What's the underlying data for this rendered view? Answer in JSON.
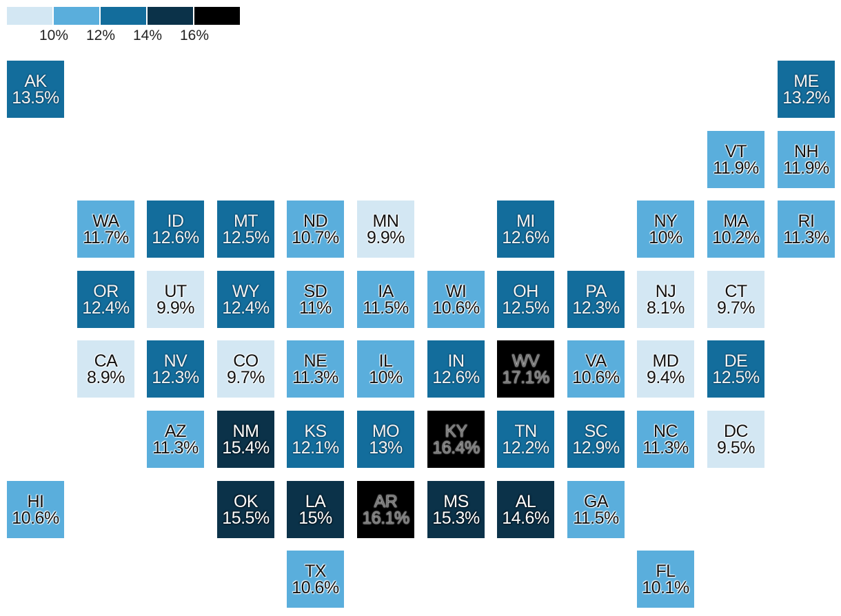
{
  "legend": {
    "colors": [
      "#d3e7f3",
      "#5aaedc",
      "#136d9c",
      "#0b3249",
      "#000000"
    ],
    "ticks": [
      "10%",
      "12%",
      "14%",
      "16%"
    ]
  },
  "states": [
    {
      "abbr": "AK",
      "value": "13.5%",
      "color": "#136d9c",
      "col": 0,
      "row": 0
    },
    {
      "abbr": "ME",
      "value": "13.2%",
      "color": "#136d9c",
      "col": 11,
      "row": 0
    },
    {
      "abbr": "VT",
      "value": "11.9%",
      "color": "#5aaedc",
      "col": 10,
      "row": 1
    },
    {
      "abbr": "NH",
      "value": "11.9%",
      "color": "#5aaedc",
      "col": 11,
      "row": 1
    },
    {
      "abbr": "WA",
      "value": "11.7%",
      "color": "#5aaedc",
      "col": 1,
      "row": 2
    },
    {
      "abbr": "ID",
      "value": "12.6%",
      "color": "#136d9c",
      "col": 2,
      "row": 2
    },
    {
      "abbr": "MT",
      "value": "12.5%",
      "color": "#136d9c",
      "col": 3,
      "row": 2
    },
    {
      "abbr": "ND",
      "value": "10.7%",
      "color": "#5aaedc",
      "col": 4,
      "row": 2
    },
    {
      "abbr": "MN",
      "value": "9.9%",
      "color": "#d3e7f3",
      "col": 5,
      "row": 2
    },
    {
      "abbr": "MI",
      "value": "12.6%",
      "color": "#136d9c",
      "col": 7,
      "row": 2
    },
    {
      "abbr": "NY",
      "value": "10%",
      "color": "#5aaedc",
      "col": 9,
      "row": 2
    },
    {
      "abbr": "MA",
      "value": "10.2%",
      "color": "#5aaedc",
      "col": 10,
      "row": 2
    },
    {
      "abbr": "RI",
      "value": "11.3%",
      "color": "#5aaedc",
      "col": 11,
      "row": 2
    },
    {
      "abbr": "OR",
      "value": "12.4%",
      "color": "#136d9c",
      "col": 1,
      "row": 3
    },
    {
      "abbr": "UT",
      "value": "9.9%",
      "color": "#d3e7f3",
      "col": 2,
      "row": 3
    },
    {
      "abbr": "WY",
      "value": "12.4%",
      "color": "#136d9c",
      "col": 3,
      "row": 3
    },
    {
      "abbr": "SD",
      "value": "11%",
      "color": "#5aaedc",
      "col": 4,
      "row": 3
    },
    {
      "abbr": "IA",
      "value": "11.5%",
      "color": "#5aaedc",
      "col": 5,
      "row": 3
    },
    {
      "abbr": "WI",
      "value": "10.6%",
      "color": "#5aaedc",
      "col": 6,
      "row": 3
    },
    {
      "abbr": "OH",
      "value": "12.5%",
      "color": "#136d9c",
      "col": 7,
      "row": 3
    },
    {
      "abbr": "PA",
      "value": "12.3%",
      "color": "#136d9c",
      "col": 8,
      "row": 3
    },
    {
      "abbr": "NJ",
      "value": "8.1%",
      "color": "#d3e7f3",
      "col": 9,
      "row": 3
    },
    {
      "abbr": "CT",
      "value": "9.7%",
      "color": "#d3e7f3",
      "col": 10,
      "row": 3
    },
    {
      "abbr": "CA",
      "value": "8.9%",
      "color": "#d3e7f3",
      "col": 1,
      "row": 4
    },
    {
      "abbr": "NV",
      "value": "12.3%",
      "color": "#136d9c",
      "col": 2,
      "row": 4
    },
    {
      "abbr": "CO",
      "value": "9.7%",
      "color": "#d3e7f3",
      "col": 3,
      "row": 4
    },
    {
      "abbr": "NE",
      "value": "11.3%",
      "color": "#5aaedc",
      "col": 4,
      "row": 4
    },
    {
      "abbr": "IL",
      "value": "10%",
      "color": "#5aaedc",
      "col": 5,
      "row": 4
    },
    {
      "abbr": "IN",
      "value": "12.6%",
      "color": "#136d9c",
      "col": 6,
      "row": 4
    },
    {
      "abbr": "WV",
      "value": "17.1%",
      "color": "#000000",
      "col": 7,
      "row": 4
    },
    {
      "abbr": "VA",
      "value": "10.6%",
      "color": "#5aaedc",
      "col": 8,
      "row": 4
    },
    {
      "abbr": "MD",
      "value": "9.4%",
      "color": "#d3e7f3",
      "col": 9,
      "row": 4
    },
    {
      "abbr": "DE",
      "value": "12.5%",
      "color": "#136d9c",
      "col": 10,
      "row": 4
    },
    {
      "abbr": "AZ",
      "value": "11.3%",
      "color": "#5aaedc",
      "col": 2,
      "row": 5
    },
    {
      "abbr": "NM",
      "value": "15.4%",
      "color": "#0b3249",
      "col": 3,
      "row": 5
    },
    {
      "abbr": "KS",
      "value": "12.1%",
      "color": "#136d9c",
      "col": 4,
      "row": 5
    },
    {
      "abbr": "MO",
      "value": "13%",
      "color": "#136d9c",
      "col": 5,
      "row": 5
    },
    {
      "abbr": "KY",
      "value": "16.4%",
      "color": "#000000",
      "col": 6,
      "row": 5
    },
    {
      "abbr": "TN",
      "value": "12.2%",
      "color": "#136d9c",
      "col": 7,
      "row": 5
    },
    {
      "abbr": "SC",
      "value": "12.9%",
      "color": "#136d9c",
      "col": 8,
      "row": 5
    },
    {
      "abbr": "NC",
      "value": "11.3%",
      "color": "#5aaedc",
      "col": 9,
      "row": 5
    },
    {
      "abbr": "DC",
      "value": "9.5%",
      "color": "#d3e7f3",
      "col": 10,
      "row": 5
    },
    {
      "abbr": "HI",
      "value": "10.6%",
      "color": "#5aaedc",
      "col": 0,
      "row": 6
    },
    {
      "abbr": "OK",
      "value": "15.5%",
      "color": "#0b3249",
      "col": 3,
      "row": 6
    },
    {
      "abbr": "LA",
      "value": "15%",
      "color": "#0b3249",
      "col": 4,
      "row": 6
    },
    {
      "abbr": "AR",
      "value": "16.1%",
      "color": "#000000",
      "col": 5,
      "row": 6
    },
    {
      "abbr": "MS",
      "value": "15.3%",
      "color": "#0b3249",
      "col": 6,
      "row": 6
    },
    {
      "abbr": "AL",
      "value": "14.6%",
      "color": "#0b3249",
      "col": 7,
      "row": 6
    },
    {
      "abbr": "GA",
      "value": "11.5%",
      "color": "#5aaedc",
      "col": 8,
      "row": 6
    },
    {
      "abbr": "TX",
      "value": "10.6%",
      "color": "#5aaedc",
      "col": 4,
      "row": 7
    },
    {
      "abbr": "FL",
      "value": "10.1%",
      "color": "#5aaedc",
      "col": 9,
      "row": 7
    }
  ]
}
